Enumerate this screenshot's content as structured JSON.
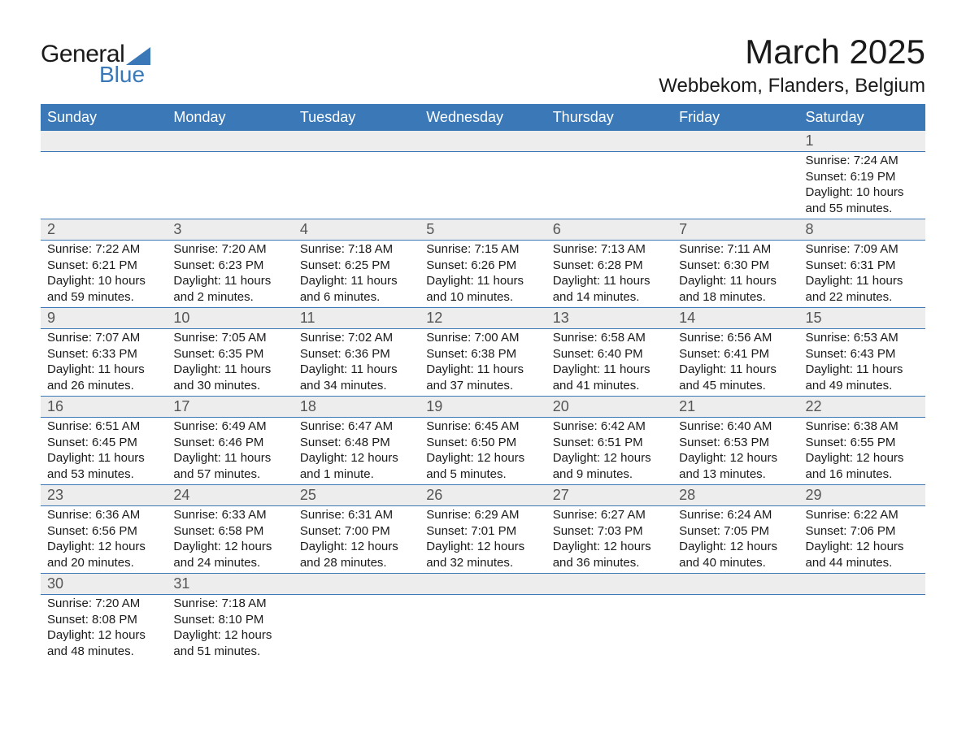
{
  "logo": {
    "text_general": "General",
    "text_blue": "Blue",
    "triangle_color": "#3a78b8"
  },
  "title": {
    "month": "March 2025",
    "location": "Webbekom, Flanders, Belgium"
  },
  "colors": {
    "header_bg": "#3a78b8",
    "header_fg": "#ffffff",
    "daynum_bg": "#ededed",
    "daynum_fg": "#555555",
    "text": "#1a1a1a",
    "rule": "#3a78b8",
    "page_bg": "#ffffff"
  },
  "day_headers": [
    "Sunday",
    "Monday",
    "Tuesday",
    "Wednesday",
    "Thursday",
    "Friday",
    "Saturday"
  ],
  "weeks": [
    [
      null,
      null,
      null,
      null,
      null,
      null,
      {
        "n": "1",
        "sunrise": "7:24 AM",
        "sunset": "6:19 PM",
        "daylight": "10 hours and 55 minutes."
      }
    ],
    [
      {
        "n": "2",
        "sunrise": "7:22 AM",
        "sunset": "6:21 PM",
        "daylight": "10 hours and 59 minutes."
      },
      {
        "n": "3",
        "sunrise": "7:20 AM",
        "sunset": "6:23 PM",
        "daylight": "11 hours and 2 minutes."
      },
      {
        "n": "4",
        "sunrise": "7:18 AM",
        "sunset": "6:25 PM",
        "daylight": "11 hours and 6 minutes."
      },
      {
        "n": "5",
        "sunrise": "7:15 AM",
        "sunset": "6:26 PM",
        "daylight": "11 hours and 10 minutes."
      },
      {
        "n": "6",
        "sunrise": "7:13 AM",
        "sunset": "6:28 PM",
        "daylight": "11 hours and 14 minutes."
      },
      {
        "n": "7",
        "sunrise": "7:11 AM",
        "sunset": "6:30 PM",
        "daylight": "11 hours and 18 minutes."
      },
      {
        "n": "8",
        "sunrise": "7:09 AM",
        "sunset": "6:31 PM",
        "daylight": "11 hours and 22 minutes."
      }
    ],
    [
      {
        "n": "9",
        "sunrise": "7:07 AM",
        "sunset": "6:33 PM",
        "daylight": "11 hours and 26 minutes."
      },
      {
        "n": "10",
        "sunrise": "7:05 AM",
        "sunset": "6:35 PM",
        "daylight": "11 hours and 30 minutes."
      },
      {
        "n": "11",
        "sunrise": "7:02 AM",
        "sunset": "6:36 PM",
        "daylight": "11 hours and 34 minutes."
      },
      {
        "n": "12",
        "sunrise": "7:00 AM",
        "sunset": "6:38 PM",
        "daylight": "11 hours and 37 minutes."
      },
      {
        "n": "13",
        "sunrise": "6:58 AM",
        "sunset": "6:40 PM",
        "daylight": "11 hours and 41 minutes."
      },
      {
        "n": "14",
        "sunrise": "6:56 AM",
        "sunset": "6:41 PM",
        "daylight": "11 hours and 45 minutes."
      },
      {
        "n": "15",
        "sunrise": "6:53 AM",
        "sunset": "6:43 PM",
        "daylight": "11 hours and 49 minutes."
      }
    ],
    [
      {
        "n": "16",
        "sunrise": "6:51 AM",
        "sunset": "6:45 PM",
        "daylight": "11 hours and 53 minutes."
      },
      {
        "n": "17",
        "sunrise": "6:49 AM",
        "sunset": "6:46 PM",
        "daylight": "11 hours and 57 minutes."
      },
      {
        "n": "18",
        "sunrise": "6:47 AM",
        "sunset": "6:48 PM",
        "daylight": "12 hours and 1 minute."
      },
      {
        "n": "19",
        "sunrise": "6:45 AM",
        "sunset": "6:50 PM",
        "daylight": "12 hours and 5 minutes."
      },
      {
        "n": "20",
        "sunrise": "6:42 AM",
        "sunset": "6:51 PM",
        "daylight": "12 hours and 9 minutes."
      },
      {
        "n": "21",
        "sunrise": "6:40 AM",
        "sunset": "6:53 PM",
        "daylight": "12 hours and 13 minutes."
      },
      {
        "n": "22",
        "sunrise": "6:38 AM",
        "sunset": "6:55 PM",
        "daylight": "12 hours and 16 minutes."
      }
    ],
    [
      {
        "n": "23",
        "sunrise": "6:36 AM",
        "sunset": "6:56 PM",
        "daylight": "12 hours and 20 minutes."
      },
      {
        "n": "24",
        "sunrise": "6:33 AM",
        "sunset": "6:58 PM",
        "daylight": "12 hours and 24 minutes."
      },
      {
        "n": "25",
        "sunrise": "6:31 AM",
        "sunset": "7:00 PM",
        "daylight": "12 hours and 28 minutes."
      },
      {
        "n": "26",
        "sunrise": "6:29 AM",
        "sunset": "7:01 PM",
        "daylight": "12 hours and 32 minutes."
      },
      {
        "n": "27",
        "sunrise": "6:27 AM",
        "sunset": "7:03 PM",
        "daylight": "12 hours and 36 minutes."
      },
      {
        "n": "28",
        "sunrise": "6:24 AM",
        "sunset": "7:05 PM",
        "daylight": "12 hours and 40 minutes."
      },
      {
        "n": "29",
        "sunrise": "6:22 AM",
        "sunset": "7:06 PM",
        "daylight": "12 hours and 44 minutes."
      }
    ],
    [
      {
        "n": "30",
        "sunrise": "7:20 AM",
        "sunset": "8:08 PM",
        "daylight": "12 hours and 48 minutes."
      },
      {
        "n": "31",
        "sunrise": "7:18 AM",
        "sunset": "8:10 PM",
        "daylight": "12 hours and 51 minutes."
      },
      null,
      null,
      null,
      null,
      null
    ]
  ],
  "labels": {
    "sunrise": "Sunrise:",
    "sunset": "Sunset:",
    "daylight": "Daylight:"
  }
}
